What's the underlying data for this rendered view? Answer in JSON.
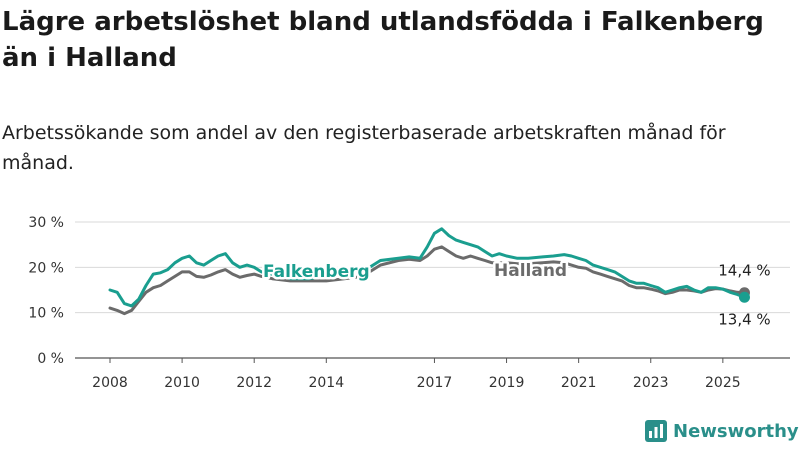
{
  "header": {
    "title": "Lägre arbetslöshet bland utlandsfödda i Falkenberg än i Halland",
    "subtitle": "Arbetssökande som andel av den registerbaserade arbetskraften månad för månad."
  },
  "brand": {
    "name": "Newsworthy",
    "icon": "bar-chart-logo-icon",
    "color": "#2a8f8a"
  },
  "chart_data": {
    "type": "line",
    "grid": "horizontal",
    "ylim": [
      0,
      30
    ],
    "y_ticks": [
      0,
      10,
      20,
      30
    ],
    "y_tick_labels": [
      "0 %",
      "10 %",
      "20 %",
      "30 %"
    ],
    "x_ticks": [
      2008,
      2010,
      2012,
      2014,
      2017,
      2019,
      2021,
      2023,
      2025
    ],
    "x_tick_labels": [
      "2008",
      "2010",
      "2012",
      "2014",
      "2017",
      "2019",
      "2021",
      "2023",
      "2025"
    ],
    "x_range": [
      2008,
      2025.67
    ],
    "series": [
      {
        "name": "Falkenberg",
        "color": "#1a9e8f",
        "end_label": "13,4 %",
        "x": [
          2008.0,
          2008.2,
          2008.4,
          2008.6,
          2008.8,
          2009.0,
          2009.2,
          2009.4,
          2009.6,
          2009.8,
          2010.0,
          2010.2,
          2010.4,
          2010.6,
          2010.8,
          2011.0,
          2011.2,
          2011.4,
          2011.6,
          2011.8,
          2012.0,
          2012.2,
          2012.5,
          2013.0,
          2013.5,
          2014.0,
          2014.5,
          2015.0,
          2015.5,
          2016.0,
          2016.3,
          2016.6,
          2016.8,
          2017.0,
          2017.2,
          2017.4,
          2017.6,
          2017.8,
          2018.0,
          2018.2,
          2018.4,
          2018.6,
          2018.8,
          2019.0,
          2019.3,
          2019.6,
          2020.0,
          2020.3,
          2020.6,
          2020.8,
          2021.0,
          2021.2,
          2021.4,
          2021.6,
          2021.8,
          2022.0,
          2022.2,
          2022.4,
          2022.6,
          2022.8,
          2023.0,
          2023.2,
          2023.4,
          2023.6,
          2023.8,
          2024.0,
          2024.2,
          2024.4,
          2024.6,
          2024.8,
          2025.0,
          2025.2,
          2025.4,
          2025.6
        ],
        "values": [
          15.0,
          14.5,
          12.0,
          11.5,
          13.0,
          16.0,
          18.5,
          18.8,
          19.5,
          21.0,
          22.0,
          22.5,
          21.0,
          20.5,
          21.5,
          22.5,
          23.0,
          21.0,
          20.0,
          20.5,
          20.0,
          19.0,
          18.5,
          17.5,
          17.5,
          18.0,
          18.5,
          19.0,
          21.5,
          22.0,
          22.3,
          22.0,
          24.5,
          27.5,
          28.5,
          27.0,
          26.0,
          25.5,
          25.0,
          24.5,
          23.5,
          22.5,
          23.0,
          22.5,
          22.0,
          22.0,
          22.3,
          22.5,
          22.8,
          22.5,
          22.0,
          21.5,
          20.5,
          20.0,
          19.5,
          19.0,
          18.0,
          17.0,
          16.5,
          16.5,
          16.0,
          15.5,
          14.5,
          15.0,
          15.5,
          15.8,
          15.0,
          14.5,
          15.5,
          15.5,
          15.2,
          14.5,
          14.0,
          13.4
        ]
      },
      {
        "name": "Halland",
        "color": "#6b6b6b",
        "end_label": "14,4 %",
        "x": [
          2008.0,
          2008.2,
          2008.4,
          2008.6,
          2008.8,
          2009.0,
          2009.2,
          2009.4,
          2009.6,
          2009.8,
          2010.0,
          2010.2,
          2010.4,
          2010.6,
          2010.8,
          2011.0,
          2011.2,
          2011.4,
          2011.6,
          2011.8,
          2012.0,
          2012.2,
          2012.5,
          2013.0,
          2013.5,
          2014.0,
          2014.5,
          2015.0,
          2015.5,
          2016.0,
          2016.3,
          2016.6,
          2016.8,
          2017.0,
          2017.2,
          2017.4,
          2017.6,
          2017.8,
          2018.0,
          2018.2,
          2018.4,
          2018.6,
          2018.8,
          2019.0,
          2019.3,
          2019.6,
          2020.0,
          2020.3,
          2020.6,
          2020.8,
          2021.0,
          2021.2,
          2021.4,
          2021.6,
          2021.8,
          2022.0,
          2022.2,
          2022.4,
          2022.6,
          2022.8,
          2023.0,
          2023.2,
          2023.4,
          2023.6,
          2023.8,
          2024.0,
          2024.2,
          2024.4,
          2024.6,
          2024.8,
          2025.0,
          2025.2,
          2025.4,
          2025.6
        ],
        "values": [
          11.0,
          10.5,
          9.8,
          10.5,
          12.5,
          14.5,
          15.5,
          16.0,
          17.0,
          18.0,
          19.0,
          19.0,
          18.0,
          17.8,
          18.3,
          19.0,
          19.5,
          18.5,
          17.8,
          18.2,
          18.5,
          18.0,
          17.5,
          17.0,
          17.0,
          17.0,
          17.5,
          18.0,
          20.5,
          21.5,
          21.8,
          21.5,
          22.5,
          24.0,
          24.5,
          23.5,
          22.5,
          22.0,
          22.5,
          22.0,
          21.5,
          21.0,
          21.0,
          21.0,
          20.8,
          20.8,
          21.0,
          21.2,
          21.0,
          20.5,
          20.0,
          19.8,
          19.0,
          18.5,
          18.0,
          17.5,
          17.0,
          16.0,
          15.5,
          15.5,
          15.2,
          14.8,
          14.2,
          14.5,
          15.0,
          15.0,
          14.8,
          14.5,
          15.0,
          15.3,
          15.2,
          14.8,
          14.5,
          14.4
        ]
      }
    ]
  }
}
